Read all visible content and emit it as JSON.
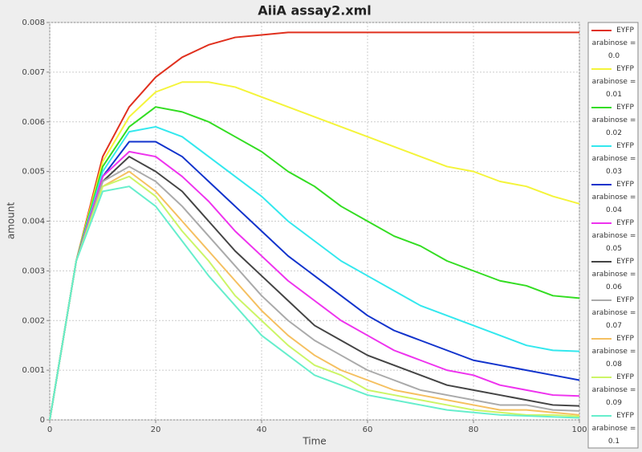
{
  "chart_data": {
    "type": "line",
    "title": "AiiA assay2.xml",
    "xlabel": "Time",
    "ylabel": "amount",
    "x": [
      0,
      5,
      10,
      15,
      20,
      25,
      30,
      35,
      40,
      45,
      50,
      55,
      60,
      65,
      70,
      75,
      80,
      85,
      90,
      95,
      100
    ],
    "xlim": [
      0,
      100
    ],
    "xticks": [
      0,
      20,
      40,
      60,
      80,
      100
    ],
    "ylim": [
      0,
      0.008
    ],
    "yticks": [
      0,
      0.001,
      0.002,
      0.003,
      0.004,
      0.005,
      0.006,
      0.007,
      0.008
    ],
    "grid": true,
    "legend": "right",
    "series": [
      {
        "name": "EYFP arabinose = 0.0",
        "color": "#e0301e",
        "values": [
          0,
          0.0032,
          0.0053,
          0.0063,
          0.0069,
          0.0073,
          0.00755,
          0.0077,
          0.00775,
          0.0078,
          0.0078,
          0.0078,
          0.0078,
          0.0078,
          0.0078,
          0.0078,
          0.0078,
          0.0078,
          0.0078,
          0.0078,
          0.0078
        ]
      },
      {
        "name": "EYFP arabinose = 0.01",
        "color": "#f4f43a",
        "values": [
          0,
          0.0032,
          0.0052,
          0.0061,
          0.0066,
          0.0068,
          0.0068,
          0.0067,
          0.0065,
          0.0063,
          0.0061,
          0.0059,
          0.0057,
          0.0055,
          0.0053,
          0.0051,
          0.005,
          0.0048,
          0.0047,
          0.0045,
          0.00435
        ]
      },
      {
        "name": "EYFP arabinose = 0.02",
        "color": "#33dd22",
        "values": [
          0,
          0.0032,
          0.0051,
          0.0059,
          0.0063,
          0.0062,
          0.006,
          0.0057,
          0.0054,
          0.005,
          0.0047,
          0.0043,
          0.004,
          0.0037,
          0.0035,
          0.0032,
          0.003,
          0.0028,
          0.0027,
          0.0025,
          0.00245
        ]
      },
      {
        "name": "EYFP arabinose = 0.03",
        "color": "#33e8ee",
        "values": [
          0,
          0.0032,
          0.005,
          0.0058,
          0.0059,
          0.0057,
          0.0053,
          0.0049,
          0.0045,
          0.004,
          0.0036,
          0.0032,
          0.0029,
          0.0026,
          0.0023,
          0.0021,
          0.0019,
          0.0017,
          0.0015,
          0.0014,
          0.00138
        ]
      },
      {
        "name": "EYFP arabinose = 0.04",
        "color": "#1133cc",
        "values": [
          0,
          0.0032,
          0.0049,
          0.0056,
          0.0056,
          0.0053,
          0.0048,
          0.0043,
          0.0038,
          0.0033,
          0.0029,
          0.0025,
          0.0021,
          0.0018,
          0.0016,
          0.0014,
          0.0012,
          0.0011,
          0.001,
          0.0009,
          0.0008
        ]
      },
      {
        "name": "EYFP arabinose = 0.05",
        "color": "#ee33ee",
        "values": [
          0,
          0.0032,
          0.0049,
          0.0054,
          0.0053,
          0.0049,
          0.0044,
          0.0038,
          0.0033,
          0.0028,
          0.0024,
          0.002,
          0.0017,
          0.0014,
          0.0012,
          0.001,
          0.0009,
          0.0007,
          0.0006,
          0.0005,
          0.00048
        ]
      },
      {
        "name": "EYFP arabinose = 0.06",
        "color": "#444444",
        "values": [
          0,
          0.0032,
          0.0048,
          0.0053,
          0.005,
          0.0046,
          0.004,
          0.0034,
          0.0029,
          0.0024,
          0.0019,
          0.0016,
          0.0013,
          0.0011,
          0.0009,
          0.0007,
          0.0006,
          0.0005,
          0.0004,
          0.0003,
          0.00028
        ]
      },
      {
        "name": "EYFP arabinose = 0.07",
        "color": "#aaaaaa",
        "values": [
          0,
          0.0032,
          0.0048,
          0.0051,
          0.0048,
          0.0043,
          0.0037,
          0.0031,
          0.0025,
          0.002,
          0.0016,
          0.0013,
          0.001,
          0.0008,
          0.0006,
          0.0005,
          0.0004,
          0.0003,
          0.0003,
          0.0002,
          0.00018
        ]
      },
      {
        "name": "EYFP arabinose = 0.08",
        "color": "#f5c060",
        "values": [
          0,
          0.0032,
          0.0047,
          0.005,
          0.0046,
          0.004,
          0.0034,
          0.0028,
          0.0022,
          0.0017,
          0.0013,
          0.001,
          0.0008,
          0.0006,
          0.0005,
          0.0004,
          0.0003,
          0.0002,
          0.0002,
          0.00015,
          0.0001
        ]
      },
      {
        "name": "EYFP arabinose = 0.09",
        "color": "#ccf566",
        "values": [
          0,
          0.0032,
          0.0047,
          0.0049,
          0.0045,
          0.0038,
          0.0032,
          0.0025,
          0.002,
          0.0015,
          0.0011,
          0.0009,
          0.0006,
          0.0005,
          0.0004,
          0.0003,
          0.0002,
          0.00015,
          0.0001,
          0.0001,
          7e-05
        ]
      },
      {
        "name": "EYFP arabinose = 0.1",
        "color": "#66eecc",
        "values": [
          0,
          0.0032,
          0.0046,
          0.0047,
          0.0043,
          0.0036,
          0.0029,
          0.0023,
          0.0017,
          0.0013,
          0.0009,
          0.0007,
          0.0005,
          0.0004,
          0.0003,
          0.0002,
          0.00015,
          0.0001,
          8e-05,
          6e-05,
          4e-05
        ]
      }
    ]
  }
}
